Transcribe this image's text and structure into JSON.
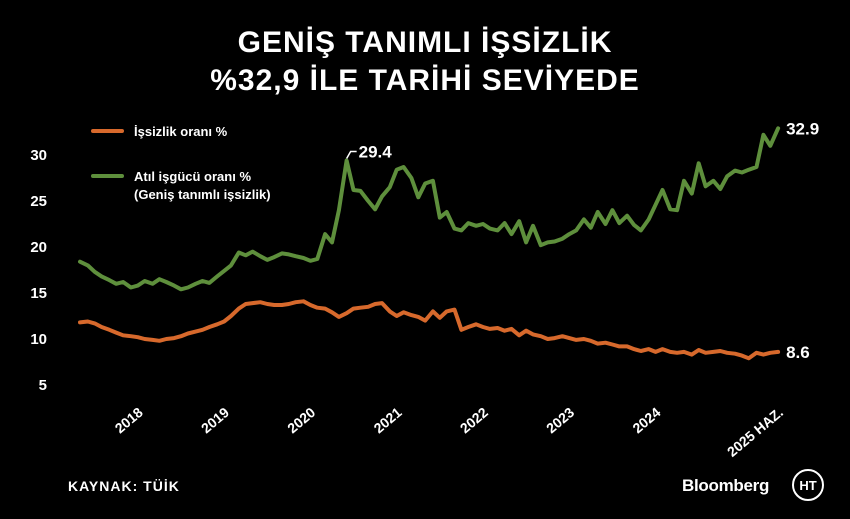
{
  "header": {
    "title_line1": "GENİŞ TANIMLI İŞSİZLİK",
    "title_line2": "%32,9 İLE TARİHİ SEVİYEDE"
  },
  "footer": {
    "source": "KAYNAK: TÜİK",
    "brand": "Bloomberg",
    "logo_text": "HT"
  },
  "colors": {
    "background": "#000000",
    "unemployment": "#d7692c",
    "underutilization": "#5e8f3c",
    "text": "#ffffff"
  },
  "chart_data": {
    "type": "line",
    "title": "GENİŞ TANIMLI İŞSİZLİK %32,9 İLE TARİHİ SEVİYEDE",
    "xlabel": "",
    "ylabel": "",
    "ylim": [
      5,
      30
    ],
    "yticks": [
      5,
      10,
      15,
      20,
      25,
      30
    ],
    "xlim": [
      2017.33,
      2025.5
    ],
    "xticks": [
      {
        "value": 2018.0,
        "label": "2018"
      },
      {
        "value": 2019.0,
        "label": "2019"
      },
      {
        "value": 2020.0,
        "label": "2020"
      },
      {
        "value": 2021.0,
        "label": "2021"
      },
      {
        "value": 2022.0,
        "label": "2022"
      },
      {
        "value": 2023.0,
        "label": "2023"
      },
      {
        "value": 2024.0,
        "label": "2024"
      },
      {
        "value": 2025.42,
        "label": "2025 HAZ."
      }
    ],
    "grid": false,
    "legend_position": "top-left",
    "series": [
      {
        "name": "İşsizlik oranı %",
        "label_lines": [
          "İşsizlik oranı %"
        ],
        "color": "#d7692c",
        "end_label": "8.6",
        "points": [
          [
            2017.33,
            11.8
          ],
          [
            2017.42,
            11.9
          ],
          [
            2017.5,
            11.7
          ],
          [
            2017.58,
            11.3
          ],
          [
            2017.67,
            11.0
          ],
          [
            2017.75,
            10.7
          ],
          [
            2017.83,
            10.4
          ],
          [
            2017.92,
            10.3
          ],
          [
            2018.0,
            10.2
          ],
          [
            2018.08,
            10.0
          ],
          [
            2018.17,
            9.9
          ],
          [
            2018.25,
            9.8
          ],
          [
            2018.33,
            10.0
          ],
          [
            2018.42,
            10.1
          ],
          [
            2018.5,
            10.3
          ],
          [
            2018.58,
            10.6
          ],
          [
            2018.67,
            10.8
          ],
          [
            2018.75,
            11.0
          ],
          [
            2018.83,
            11.3
          ],
          [
            2018.92,
            11.6
          ],
          [
            2019.0,
            11.9
          ],
          [
            2019.08,
            12.5
          ],
          [
            2019.17,
            13.3
          ],
          [
            2019.25,
            13.8
          ],
          [
            2019.33,
            13.9
          ],
          [
            2019.42,
            14.0
          ],
          [
            2019.5,
            13.8
          ],
          [
            2019.58,
            13.7
          ],
          [
            2019.67,
            13.7
          ],
          [
            2019.75,
            13.8
          ],
          [
            2019.83,
            14.0
          ],
          [
            2019.92,
            14.1
          ],
          [
            2020.0,
            13.7
          ],
          [
            2020.08,
            13.4
          ],
          [
            2020.17,
            13.3
          ],
          [
            2020.25,
            12.9
          ],
          [
            2020.33,
            12.4
          ],
          [
            2020.42,
            12.8
          ],
          [
            2020.5,
            13.3
          ],
          [
            2020.58,
            13.4
          ],
          [
            2020.67,
            13.5
          ],
          [
            2020.75,
            13.8
          ],
          [
            2020.83,
            13.9
          ],
          [
            2020.92,
            13.0
          ],
          [
            2021.0,
            12.5
          ],
          [
            2021.08,
            12.9
          ],
          [
            2021.17,
            12.6
          ],
          [
            2021.25,
            12.4
          ],
          [
            2021.33,
            12.0
          ],
          [
            2021.42,
            13.0
          ],
          [
            2021.5,
            12.3
          ],
          [
            2021.58,
            13.0
          ],
          [
            2021.67,
            13.2
          ],
          [
            2021.75,
            11.0
          ],
          [
            2021.83,
            11.3
          ],
          [
            2021.92,
            11.6
          ],
          [
            2022.0,
            11.3
          ],
          [
            2022.08,
            11.1
          ],
          [
            2022.17,
            11.2
          ],
          [
            2022.25,
            10.9
          ],
          [
            2022.33,
            11.1
          ],
          [
            2022.42,
            10.4
          ],
          [
            2022.5,
            10.9
          ],
          [
            2022.58,
            10.5
          ],
          [
            2022.67,
            10.3
          ],
          [
            2022.75,
            10.0
          ],
          [
            2022.83,
            10.1
          ],
          [
            2022.92,
            10.3
          ],
          [
            2023.0,
            10.1
          ],
          [
            2023.08,
            9.9
          ],
          [
            2023.17,
            10.0
          ],
          [
            2023.25,
            9.8
          ],
          [
            2023.33,
            9.5
          ],
          [
            2023.42,
            9.6
          ],
          [
            2023.5,
            9.4
          ],
          [
            2023.58,
            9.2
          ],
          [
            2023.67,
            9.2
          ],
          [
            2023.75,
            8.9
          ],
          [
            2023.83,
            8.7
          ],
          [
            2023.92,
            8.9
          ],
          [
            2024.0,
            8.6
          ],
          [
            2024.08,
            8.9
          ],
          [
            2024.17,
            8.6
          ],
          [
            2024.25,
            8.5
          ],
          [
            2024.33,
            8.6
          ],
          [
            2024.42,
            8.3
          ],
          [
            2024.5,
            8.8
          ],
          [
            2024.58,
            8.5
          ],
          [
            2024.67,
            8.6
          ],
          [
            2024.75,
            8.7
          ],
          [
            2024.83,
            8.5
          ],
          [
            2024.92,
            8.4
          ],
          [
            2025.0,
            8.2
          ],
          [
            2025.08,
            7.9
          ],
          [
            2025.17,
            8.5
          ],
          [
            2025.25,
            8.3
          ],
          [
            2025.33,
            8.5
          ],
          [
            2025.42,
            8.6
          ]
        ]
      },
      {
        "name": "Atıl işgücü oranı % (Geniş tanımlı işsizlik)",
        "label_lines": [
          "Atıl işgücü oranı %",
          "(Geniş tanımlı işsizlik)"
        ],
        "color": "#5e8f3c",
        "end_label": "32.9",
        "peak_label": "29.4",
        "peak_point": [
          2020.42,
          29.4
        ],
        "points": [
          [
            2017.33,
            18.4
          ],
          [
            2017.42,
            18.0
          ],
          [
            2017.5,
            17.3
          ],
          [
            2017.58,
            16.8
          ],
          [
            2017.67,
            16.4
          ],
          [
            2017.75,
            16.0
          ],
          [
            2017.83,
            16.2
          ],
          [
            2017.92,
            15.6
          ],
          [
            2018.0,
            15.8
          ],
          [
            2018.08,
            16.3
          ],
          [
            2018.17,
            16.0
          ],
          [
            2018.25,
            16.5
          ],
          [
            2018.33,
            16.2
          ],
          [
            2018.42,
            15.8
          ],
          [
            2018.5,
            15.4
          ],
          [
            2018.58,
            15.6
          ],
          [
            2018.67,
            16.0
          ],
          [
            2018.75,
            16.3
          ],
          [
            2018.83,
            16.1
          ],
          [
            2018.92,
            16.8
          ],
          [
            2019.0,
            17.4
          ],
          [
            2019.08,
            18.0
          ],
          [
            2019.17,
            19.4
          ],
          [
            2019.25,
            19.1
          ],
          [
            2019.33,
            19.5
          ],
          [
            2019.42,
            19.0
          ],
          [
            2019.5,
            18.6
          ],
          [
            2019.58,
            18.9
          ],
          [
            2019.67,
            19.3
          ],
          [
            2019.75,
            19.2
          ],
          [
            2019.83,
            19.0
          ],
          [
            2019.92,
            18.8
          ],
          [
            2020.0,
            18.5
          ],
          [
            2020.08,
            18.7
          ],
          [
            2020.17,
            21.4
          ],
          [
            2020.25,
            20.5
          ],
          [
            2020.33,
            24.0
          ],
          [
            2020.42,
            29.4
          ],
          [
            2020.5,
            26.2
          ],
          [
            2020.58,
            26.1
          ],
          [
            2020.67,
            25.0
          ],
          [
            2020.75,
            24.1
          ],
          [
            2020.83,
            25.5
          ],
          [
            2020.92,
            26.5
          ],
          [
            2021.0,
            28.4
          ],
          [
            2021.08,
            28.7
          ],
          [
            2021.17,
            27.5
          ],
          [
            2021.25,
            25.4
          ],
          [
            2021.33,
            26.9
          ],
          [
            2021.42,
            27.2
          ],
          [
            2021.5,
            23.2
          ],
          [
            2021.58,
            23.8
          ],
          [
            2021.67,
            22.0
          ],
          [
            2021.75,
            21.8
          ],
          [
            2021.83,
            22.6
          ],
          [
            2021.92,
            22.3
          ],
          [
            2022.0,
            22.5
          ],
          [
            2022.08,
            22.0
          ],
          [
            2022.17,
            21.8
          ],
          [
            2022.25,
            22.6
          ],
          [
            2022.33,
            21.4
          ],
          [
            2022.42,
            22.8
          ],
          [
            2022.5,
            20.5
          ],
          [
            2022.58,
            22.3
          ],
          [
            2022.67,
            20.2
          ],
          [
            2022.75,
            20.5
          ],
          [
            2022.83,
            20.6
          ],
          [
            2022.92,
            20.9
          ],
          [
            2023.0,
            21.4
          ],
          [
            2023.08,
            21.8
          ],
          [
            2023.17,
            23.0
          ],
          [
            2023.25,
            22.1
          ],
          [
            2023.33,
            23.8
          ],
          [
            2023.42,
            22.5
          ],
          [
            2023.5,
            24.0
          ],
          [
            2023.58,
            22.6
          ],
          [
            2023.67,
            23.4
          ],
          [
            2023.75,
            22.4
          ],
          [
            2023.83,
            21.8
          ],
          [
            2023.92,
            23.0
          ],
          [
            2024.0,
            24.6
          ],
          [
            2024.08,
            26.2
          ],
          [
            2024.17,
            24.1
          ],
          [
            2024.25,
            24.0
          ],
          [
            2024.33,
            27.2
          ],
          [
            2024.42,
            25.8
          ],
          [
            2024.5,
            29.1
          ],
          [
            2024.58,
            26.6
          ],
          [
            2024.67,
            27.2
          ],
          [
            2024.75,
            26.3
          ],
          [
            2024.83,
            27.7
          ],
          [
            2024.92,
            28.3
          ],
          [
            2025.0,
            28.1
          ],
          [
            2025.08,
            28.4
          ],
          [
            2025.17,
            28.7
          ],
          [
            2025.25,
            32.2
          ],
          [
            2025.33,
            31.0
          ],
          [
            2025.42,
            32.9
          ]
        ]
      }
    ]
  }
}
